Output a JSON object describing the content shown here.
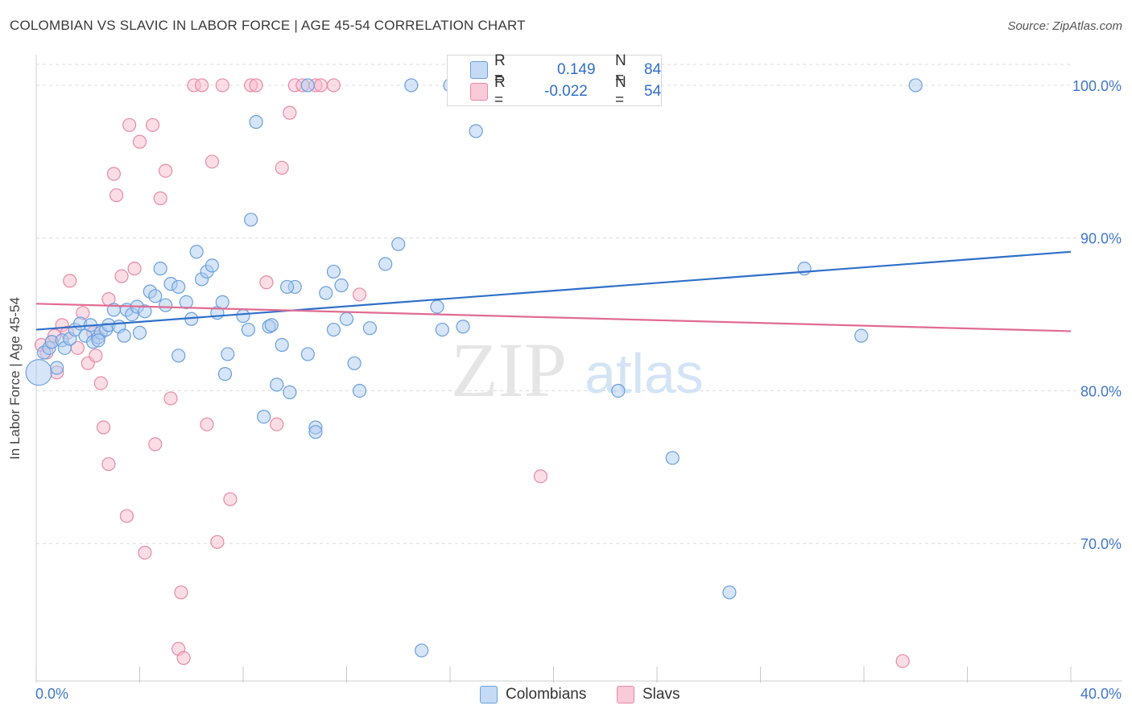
{
  "header": {
    "title": "COLOMBIAN VS SLAVIC IN LABOR FORCE | AGE 45-54 CORRELATION CHART",
    "source": "Source: ZipAtlas.com"
  },
  "watermark": {
    "zip": "ZIP",
    "atlas": "atlas"
  },
  "legend": {
    "colombians": {
      "r_label": "R =",
      "r_value": "0.149",
      "n_label": "N =",
      "n_value": "84"
    },
    "slavs": {
      "r_label": "R =",
      "r_value": "-0.022",
      "n_label": "N =",
      "n_value": "54"
    }
  },
  "bottom_legend": {
    "colombians": "Colombians",
    "slavs": "Slavs"
  },
  "colors": {
    "blue_fill": "#aecbf0",
    "blue_stroke": "#6a9fdd",
    "blue_line": "#2f6fc9",
    "pink_fill": "#f7bccd",
    "pink_stroke": "#e88aa6",
    "pink_line": "#e06c92",
    "tick_label": "#3f77c9",
    "grid": "#dcdcdc"
  },
  "chart_data": {
    "type": "scatter",
    "title": "COLOMBIAN VS SLAVIC IN LABOR FORCE | AGE 45-54 CORRELATION CHART",
    "xlabel": "",
    "ylabel": "In Labor Force | Age 45-54",
    "xlim": [
      0,
      40
    ],
    "ylim": [
      61,
      102
    ],
    "x_tick_labels": [
      "0.0%",
      "40.0%"
    ],
    "y_ticks": [
      70,
      80,
      90,
      100
    ],
    "y_tick_labels": [
      "70.0%",
      "80.0%",
      "90.0%",
      "100.0%"
    ],
    "grid": true,
    "legend_position": "top-center",
    "series": [
      {
        "name": "Colombians",
        "r": 0.149,
        "n": 84,
        "trend": {
          "x": [
            0,
            40
          ],
          "y": [
            84.0,
            89.1
          ]
        },
        "points": [
          [
            0.1,
            81.2
          ],
          [
            0.3,
            82.5
          ],
          [
            0.5,
            82.8
          ],
          [
            0.6,
            83.2
          ],
          [
            0.8,
            81.5
          ],
          [
            1.0,
            83.3
          ],
          [
            1.1,
            82.8
          ],
          [
            1.3,
            83.4
          ],
          [
            1.5,
            84.0
          ],
          [
            1.7,
            84.4
          ],
          [
            1.9,
            83.6
          ],
          [
            2.1,
            84.3
          ],
          [
            2.2,
            83.2
          ],
          [
            2.4,
            83.5
          ],
          [
            2.5,
            83.8
          ],
          [
            2.7,
            84.0
          ],
          [
            2.8,
            84.3
          ],
          [
            3.0,
            85.3
          ],
          [
            3.2,
            84.2
          ],
          [
            3.4,
            83.6
          ],
          [
            3.5,
            85.3
          ],
          [
            3.7,
            85.0
          ],
          [
            3.9,
            85.5
          ],
          [
            4.0,
            83.8
          ],
          [
            4.2,
            85.2
          ],
          [
            4.4,
            86.5
          ],
          [
            4.6,
            86.2
          ],
          [
            4.8,
            88.0
          ],
          [
            5.0,
            85.6
          ],
          [
            5.2,
            87.0
          ],
          [
            5.5,
            86.8
          ],
          [
            5.8,
            85.8
          ],
          [
            6.0,
            84.7
          ],
          [
            6.2,
            89.1
          ],
          [
            6.4,
            87.3
          ],
          [
            6.6,
            87.8
          ],
          [
            6.8,
            88.2
          ],
          [
            7.0,
            85.1
          ],
          [
            7.2,
            85.8
          ],
          [
            7.4,
            82.4
          ],
          [
            7.3,
            81.1
          ],
          [
            8.0,
            84.9
          ],
          [
            8.2,
            84.0
          ],
          [
            8.5,
            97.6
          ],
          [
            8.3,
            91.2
          ],
          [
            9.0,
            84.2
          ],
          [
            9.1,
            84.3
          ],
          [
            9.3,
            80.4
          ],
          [
            9.5,
            83.0
          ],
          [
            9.8,
            79.9
          ],
          [
            10.0,
            86.8
          ],
          [
            10.5,
            82.4
          ],
          [
            10.8,
            77.6
          ],
          [
            11.2,
            86.4
          ],
          [
            11.5,
            87.8
          ],
          [
            11.8,
            86.9
          ],
          [
            12.0,
            84.7
          ],
          [
            12.3,
            81.8
          ],
          [
            12.5,
            80.0
          ],
          [
            12.9,
            84.1
          ],
          [
            13.5,
            88.3
          ],
          [
            14.0,
            89.6
          ],
          [
            14.5,
            100.0
          ],
          [
            14.9,
            63.0
          ],
          [
            15.5,
            85.5
          ],
          [
            15.7,
            84.0
          ],
          [
            16.0,
            100.0
          ],
          [
            16.5,
            84.2
          ],
          [
            17.0,
            97.0
          ],
          [
            18.0,
            100.0
          ],
          [
            18.4,
            100.0
          ],
          [
            22.5,
            80.0
          ],
          [
            24.6,
            75.6
          ],
          [
            26.8,
            66.8
          ],
          [
            29.7,
            88.0
          ],
          [
            31.9,
            83.6
          ],
          [
            34.0,
            100.0
          ],
          [
            5.5,
            82.3
          ],
          [
            10.5,
            100.0
          ],
          [
            8.8,
            78.3
          ],
          [
            11.5,
            84.0
          ],
          [
            10.8,
            77.3
          ],
          [
            9.7,
            86.8
          ],
          [
            2.4,
            83.3
          ]
        ]
      },
      {
        "name": "Slavs",
        "r": -0.022,
        "n": 54,
        "trend": {
          "x": [
            0,
            40
          ],
          "y": [
            85.7,
            83.9
          ]
        },
        "points": [
          [
            0.2,
            83.0
          ],
          [
            0.4,
            82.5
          ],
          [
            0.6,
            83.2
          ],
          [
            0.8,
            81.2
          ],
          [
            1.0,
            84.3
          ],
          [
            1.2,
            83.8
          ],
          [
            0.7,
            83.6
          ],
          [
            1.6,
            82.8
          ],
          [
            1.8,
            85.1
          ],
          [
            2.0,
            81.8
          ],
          [
            2.2,
            83.8
          ],
          [
            2.3,
            82.3
          ],
          [
            2.5,
            80.5
          ],
          [
            2.6,
            77.6
          ],
          [
            2.8,
            75.2
          ],
          [
            3.1,
            92.8
          ],
          [
            3.3,
            87.5
          ],
          [
            3.5,
            71.8
          ],
          [
            3.6,
            97.4
          ],
          [
            3.8,
            88.0
          ],
          [
            4.0,
            96.3
          ],
          [
            4.2,
            69.4
          ],
          [
            4.5,
            97.4
          ],
          [
            4.6,
            76.5
          ],
          [
            4.8,
            92.6
          ],
          [
            5.0,
            94.4
          ],
          [
            5.2,
            79.5
          ],
          [
            5.6,
            66.8
          ],
          [
            5.5,
            63.1
          ],
          [
            5.7,
            62.5
          ],
          [
            6.1,
            100.0
          ],
          [
            6.4,
            100.0
          ],
          [
            6.6,
            77.8
          ],
          [
            6.8,
            95.0
          ],
          [
            7.0,
            70.1
          ],
          [
            7.2,
            100.0
          ],
          [
            7.5,
            72.9
          ],
          [
            8.3,
            100.0
          ],
          [
            8.5,
            100.0
          ],
          [
            8.9,
            87.1
          ],
          [
            9.3,
            77.8
          ],
          [
            9.5,
            94.6
          ],
          [
            9.8,
            98.2
          ],
          [
            10.0,
            100.0
          ],
          [
            10.3,
            100.0
          ],
          [
            10.8,
            100.0
          ],
          [
            11.0,
            100.0
          ],
          [
            11.5,
            100.0
          ],
          [
            12.5,
            86.3
          ],
          [
            19.5,
            74.4
          ],
          [
            33.5,
            62.3
          ],
          [
            1.3,
            87.2
          ],
          [
            3.0,
            94.2
          ],
          [
            2.8,
            86.0
          ]
        ]
      }
    ]
  }
}
